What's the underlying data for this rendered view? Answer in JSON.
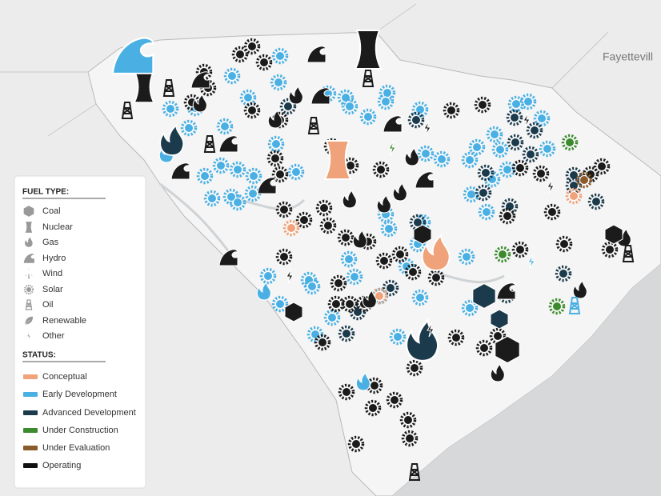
{
  "map": {
    "city_label": "Fayettevill"
  },
  "legend": {
    "fuel_type": {
      "title": "FUEL TYPE:",
      "items": [
        "Coal",
        "Nuclear",
        "Gas",
        "Hydro",
        "Wind",
        "Solar",
        "Oil",
        "Renewable",
        "Other"
      ]
    },
    "status": {
      "title": "STATUS:",
      "items": [
        "Conceptual",
        "Early Development",
        "Advanced Development",
        "Under Construction",
        "Under Evaluation",
        "Operating"
      ]
    }
  }
}
